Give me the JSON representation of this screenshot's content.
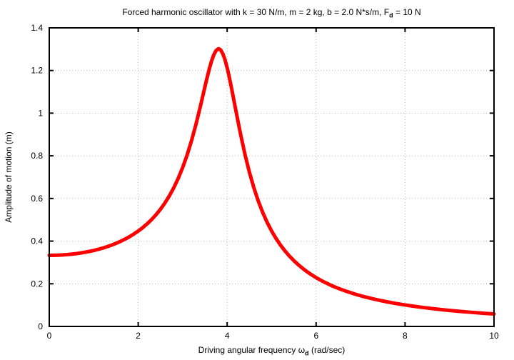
{
  "title": {
    "prefix": "Forced harmonic oscillator with k = 30 N/m, m = 2 kg, b = 2.0 N*s/m, F",
    "sub": "d",
    "suffix": " = 10 N"
  },
  "xlabel": {
    "prefix": "Driving angular frequency ω",
    "sub": "d",
    "suffix": " (rad/sec)"
  },
  "colors": {
    "curve": "#ff0000",
    "grid": "#b3b3b3",
    "frame": "#000000",
    "text": "#000000",
    "background": "#ffffff"
  },
  "chart_data": {
    "type": "line",
    "title": "Forced harmonic oscillator with k = 30 N/m, m = 2 kg, b = 2.0 N*s/m, F_d = 10 N",
    "xlabel": "Driving angular frequency ω_d (rad/sec)",
    "ylabel": "Amplitude of motion (m)",
    "xlim": [
      0,
      10
    ],
    "ylim": [
      0,
      1.4
    ],
    "x_ticks": [
      0,
      2,
      4,
      6,
      8,
      10
    ],
    "x_tick_labels": [
      "0",
      "2",
      "4",
      "6",
      "8",
      "10"
    ],
    "y_ticks": [
      0,
      0.2,
      0.4,
      0.6,
      0.8,
      1,
      1.2,
      1.4
    ],
    "y_tick_labels": [
      "0",
      "0.2",
      "0.4",
      "0.6",
      "0.8",
      "1",
      "1.2",
      "1.4"
    ],
    "grid": true,
    "legend": "none",
    "model": {
      "k_N_per_m": 30,
      "m_kg": 2,
      "b_Ns_per_m": 2.0,
      "F_d_N": 10
    },
    "series": [
      {
        "name": "amplitude",
        "color": "#ff0000",
        "points": [
          [
            0,
            0.3333
          ],
          [
            0.1,
            0.3336
          ],
          [
            0.2,
            0.3342
          ],
          [
            0.3,
            0.3353
          ],
          [
            0.4,
            0.3368
          ],
          [
            0.5,
            0.3388
          ],
          [
            0.6,
            0.3412
          ],
          [
            0.7,
            0.3442
          ],
          [
            0.8,
            0.3477
          ],
          [
            0.9,
            0.3517
          ],
          [
            1.0,
            0.3562
          ],
          [
            1.1,
            0.3614
          ],
          [
            1.2,
            0.3673
          ],
          [
            1.3,
            0.3739
          ],
          [
            1.4,
            0.3812
          ],
          [
            1.5,
            0.3895
          ],
          [
            1.6,
            0.3986
          ],
          [
            1.7,
            0.4089
          ],
          [
            1.8,
            0.4203
          ],
          [
            1.9,
            0.433
          ],
          [
            2.0,
            0.4472
          ],
          [
            2.1,
            0.4631
          ],
          [
            2.2,
            0.481
          ],
          [
            2.3,
            0.5011
          ],
          [
            2.4,
            0.5237
          ],
          [
            2.5,
            0.5494
          ],
          [
            2.6,
            0.5787
          ],
          [
            2.7,
            0.6121
          ],
          [
            2.8,
            0.6504
          ],
          [
            2.9,
            0.6945
          ],
          [
            3.0,
            0.7454
          ],
          [
            3.1,
            0.8041
          ],
          [
            3.2,
            0.8717
          ],
          [
            3.3,
            0.9486
          ],
          [
            3.4,
            1.0338
          ],
          [
            3.5,
            1.1233
          ],
          [
            3.55,
            1.1672
          ],
          [
            3.6,
            1.2084
          ],
          [
            3.65,
            1.2447
          ],
          [
            3.7,
            1.2739
          ],
          [
            3.75,
            1.2935
          ],
          [
            3.8,
            1.3017
          ],
          [
            3.81,
            1.3019
          ],
          [
            3.85,
            1.2973
          ],
          [
            3.9,
            1.2802
          ],
          [
            3.95,
            1.2514
          ],
          [
            4.0,
            1.2127
          ],
          [
            4.05,
            1.1666
          ],
          [
            4.1,
            1.1156
          ],
          [
            4.2,
            1.0079
          ],
          [
            4.3,
            0.9028
          ],
          [
            4.4,
            0.8072
          ],
          [
            4.5,
            0.7231
          ],
          [
            4.6,
            0.6504
          ],
          [
            4.7,
            0.5878
          ],
          [
            4.8,
            0.534
          ],
          [
            4.9,
            0.4875
          ],
          [
            5.0,
            0.4472
          ],
          [
            5.1,
            0.4121
          ],
          [
            5.2,
            0.3812
          ],
          [
            5.3,
            0.354
          ],
          [
            5.4,
            0.3299
          ],
          [
            5.5,
            0.3084
          ],
          [
            5.6,
            0.2892
          ],
          [
            5.7,
            0.2718
          ],
          [
            5.8,
            0.2561
          ],
          [
            5.9,
            0.2419
          ],
          [
            6.0,
            0.2289
          ],
          [
            6.1,
            0.2171
          ],
          [
            6.2,
            0.2062
          ],
          [
            6.3,
            0.1962
          ],
          [
            6.4,
            0.187
          ],
          [
            6.5,
            0.1785
          ],
          [
            6.6,
            0.1706
          ],
          [
            6.7,
            0.1632
          ],
          [
            6.8,
            0.1564
          ],
          [
            6.9,
            0.15
          ],
          [
            7.0,
            0.144
          ],
          [
            7.1,
            0.1384
          ],
          [
            7.2,
            0.1332
          ],
          [
            7.3,
            0.1283
          ],
          [
            7.4,
            0.1236
          ],
          [
            7.5,
            0.1193
          ],
          [
            7.6,
            0.1151
          ],
          [
            7.7,
            0.1112
          ],
          [
            7.8,
            0.1075
          ],
          [
            7.9,
            0.104
          ],
          [
            8.0,
            0.1007
          ],
          [
            8.1,
            0.0976
          ],
          [
            8.2,
            0.0946
          ],
          [
            8.3,
            0.0917
          ],
          [
            8.4,
            0.089
          ],
          [
            8.5,
            0.0864
          ],
          [
            8.6,
            0.0839
          ],
          [
            8.7,
            0.0816
          ],
          [
            8.8,
            0.0793
          ],
          [
            8.9,
            0.0771
          ],
          [
            9.0,
            0.0751
          ],
          [
            9.1,
            0.0731
          ],
          [
            9.2,
            0.0712
          ],
          [
            9.3,
            0.0694
          ],
          [
            9.4,
            0.0676
          ],
          [
            9.5,
            0.0659
          ],
          [
            9.6,
            0.0643
          ],
          [
            9.7,
            0.0627
          ],
          [
            9.8,
            0.0613
          ],
          [
            9.9,
            0.0598
          ],
          [
            10.0,
            0.0584
          ]
        ]
      }
    ]
  }
}
